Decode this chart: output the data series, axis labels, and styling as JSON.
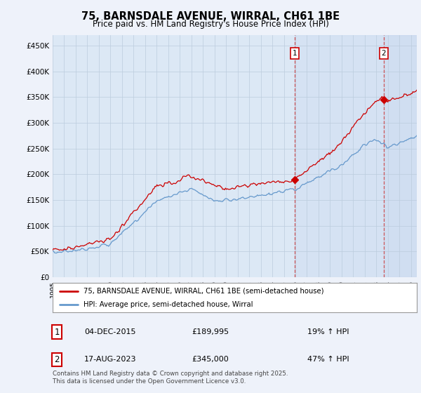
{
  "title": "75, BARNSDALE AVENUE, WIRRAL, CH61 1BE",
  "subtitle": "Price paid vs. HM Land Registry's House Price Index (HPI)",
  "ylabel_ticks": [
    "£0",
    "£50K",
    "£100K",
    "£150K",
    "£200K",
    "£250K",
    "£300K",
    "£350K",
    "£400K",
    "£450K"
  ],
  "ytick_values": [
    0,
    50000,
    100000,
    150000,
    200000,
    250000,
    300000,
    350000,
    400000,
    450000
  ],
  "ylim": [
    0,
    470000
  ],
  "xlim_start": 1995.0,
  "xlim_end": 2026.5,
  "red_color": "#cc0000",
  "blue_color": "#6699cc",
  "marker1_year": 2015.92,
  "marker2_year": 2023.63,
  "marker1_price": 189995,
  "marker2_price": 345000,
  "shade_color": "#ddeeff",
  "annotation1": {
    "label": "1",
    "date": "04-DEC-2015",
    "price": "£189,995",
    "pct": "19% ↑ HPI"
  },
  "annotation2": {
    "label": "2",
    "date": "17-AUG-2023",
    "price": "£345,000",
    "pct": "47% ↑ HPI"
  },
  "legend1": "75, BARNSDALE AVENUE, WIRRAL, CH61 1BE (semi-detached house)",
  "legend2": "HPI: Average price, semi-detached house, Wirral",
  "footnote": "Contains HM Land Registry data © Crown copyright and database right 2025.\nThis data is licensed under the Open Government Licence v3.0.",
  "background_color": "#eef2fa",
  "plot_background": "#dce8f5",
  "grid_color": "#bbccdd"
}
